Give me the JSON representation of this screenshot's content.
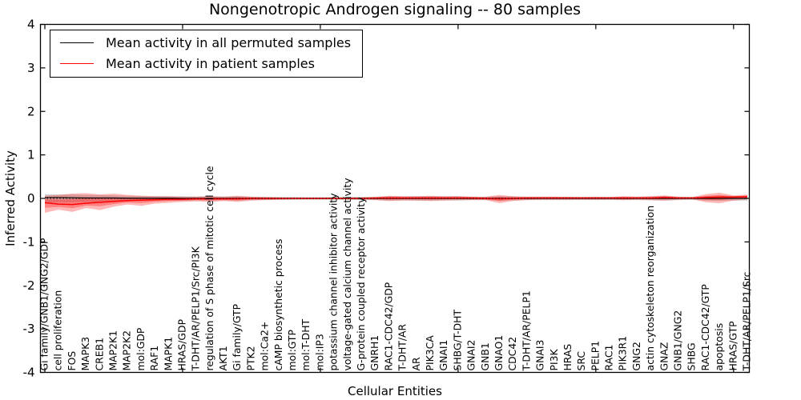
{
  "figure": {
    "title": "Nongenotropic Androgen signaling -- 80 samples",
    "legend": [
      {
        "label": "Mean activity in all permuted samples",
        "color": "#000000"
      },
      {
        "label": "Mean activity in patient samples",
        "color": "#ff0000"
      }
    ]
  },
  "chart_data": {
    "type": "line",
    "title": "Nongenotropic Androgen signaling -- 80 samples",
    "xlabel": "Cellular Entities",
    "ylabel": "Inferred Activity",
    "ylim": [
      -4,
      4
    ],
    "yticks": [
      4,
      3,
      2,
      1,
      0,
      -1,
      -2,
      -3,
      -4
    ],
    "x_major_tick_step": 10,
    "grid": false,
    "legend_position": "upper left",
    "zero_line": {
      "style": "dotted",
      "color": "#000000",
      "y": 0
    },
    "categories": [
      "Gi family/GNB1/GNG2/GDP",
      "cell proliferation",
      "FOS",
      "MAPK3",
      "CREB1",
      "MAP2K1",
      "MAP2K2",
      "mol:GDP",
      "RAF1",
      "MAPK1",
      "HRAS/GDP",
      "T-DHT/AR/PELP1/Src/PI3K",
      "regulation of S phase of mitotic cell cycle",
      "AKT1",
      "Gi family/GTP",
      "PTK2",
      "mol:Ca2+",
      "cAMP biosynthetic process",
      "mol:GTP",
      "mol:T-DHT",
      "mol:IP3",
      "potassium channel inhibitor activity",
      "voltage-gated calcium channel activity",
      "G-protein coupled receptor activity",
      "GNRH1",
      "RAC1-CDC42/GDP",
      "T-DHT/AR",
      "AR",
      "PIK3CA",
      "GNAI1",
      "SHBG/T-DHT",
      "GNAI2",
      "GNB1",
      "GNAO1",
      "CDC42",
      "T-DHT/AR/PELP1",
      "GNAI3",
      "PI3K",
      "HRAS",
      "SRC",
      "PELP1",
      "RAC1",
      "PIK3R1",
      "GNG2",
      "actin cytoskeleton reorganization",
      "GNAZ",
      "GNB1/GNG2",
      "SHBG",
      "RAC1-CDC42/GTP",
      "apoptosis",
      "HRAS/GTP",
      "T-DHT/AR/PELP1/Src"
    ],
    "series": [
      {
        "name": "Mean activity in all permuted samples",
        "color": "#000000",
        "values": [
          0.02,
          0.02,
          0.015,
          0.01,
          0.01,
          0.01,
          0.005,
          0.005,
          0.005,
          0.005,
          0,
          0,
          0,
          0,
          0,
          0,
          0,
          0,
          0,
          0,
          0,
          0,
          0,
          0,
          0,
          0,
          0,
          0,
          0,
          0,
          0,
          0,
          0,
          0,
          0,
          0,
          0,
          0,
          0,
          0,
          0,
          0,
          0,
          0,
          0,
          0,
          0,
          0,
          0,
          0,
          0,
          0
        ]
      },
      {
        "name": "Mean activity in patient samples",
        "color": "#ff0000",
        "values": [
          -0.1,
          -0.13,
          -0.14,
          -0.11,
          -0.09,
          -0.07,
          -0.05,
          -0.04,
          -0.03,
          -0.02,
          -0.02,
          -0.01,
          -0.01,
          -0.01,
          -0.01,
          0,
          0,
          0,
          0,
          0,
          0,
          0,
          0,
          0,
          0.01,
          0.01,
          0.01,
          0.01,
          0.01,
          0.01,
          0.01,
          0.01,
          0,
          -0.01,
          0,
          0.01,
          0.01,
          0.01,
          0.01,
          0.01,
          0.01,
          0.01,
          0.01,
          0.01,
          0.01,
          0.02,
          0.01,
          0.01,
          0.02,
          0.03,
          0.03,
          0.04
        ]
      }
    ],
    "bands": [
      {
        "name": "permuted-samples-range",
        "color": "#000000",
        "opacity": 0.18,
        "upper": [
          0.1,
          0.09,
          0.09,
          0.08,
          0.08,
          0.07,
          0.06,
          0.06,
          0.055,
          0.05,
          0.05,
          0.045,
          0.05,
          0.045,
          0.05,
          0.04,
          0.04,
          0.035,
          0.035,
          0.03,
          0.03,
          0.03,
          0.035,
          0.04,
          0.04,
          0.05,
          0.045,
          0.05,
          0.05,
          0.045,
          0.05,
          0.04,
          0.04,
          0.05,
          0.045,
          0.04,
          0.04,
          0.04,
          0.04,
          0.035,
          0.04,
          0.035,
          0.04,
          0.04,
          0.045,
          0.05,
          0.04,
          0.035,
          0.05,
          0.055,
          0.05,
          0.05
        ],
        "lower": [
          -0.1,
          -0.09,
          -0.09,
          -0.08,
          -0.08,
          -0.07,
          -0.06,
          -0.06,
          -0.055,
          -0.05,
          -0.05,
          -0.045,
          -0.05,
          -0.045,
          -0.05,
          -0.04,
          -0.04,
          -0.035,
          -0.035,
          -0.03,
          -0.03,
          -0.03,
          -0.035,
          -0.04,
          -0.04,
          -0.05,
          -0.045,
          -0.05,
          -0.05,
          -0.045,
          -0.05,
          -0.04,
          -0.04,
          -0.05,
          -0.045,
          -0.04,
          -0.04,
          -0.04,
          -0.04,
          -0.035,
          -0.04,
          -0.035,
          -0.04,
          -0.04,
          -0.045,
          -0.05,
          -0.04,
          -0.035,
          -0.05,
          -0.055,
          -0.05,
          -0.05
        ]
      },
      {
        "name": "patient-samples-outer-range",
        "color": "#ff0000",
        "opacity": 0.28,
        "upper": [
          0.06,
          0.08,
          0.11,
          0.12,
          0.09,
          0.11,
          0.08,
          0.06,
          0.05,
          0.05,
          0.04,
          0.04,
          0.05,
          0.04,
          0.06,
          0.04,
          0.03,
          0.02,
          0.015,
          0.015,
          0.015,
          0.015,
          0.015,
          0.02,
          0.03,
          0.06,
          0.05,
          0.05,
          0.06,
          0.05,
          0.05,
          0.04,
          0.04,
          0.08,
          0.05,
          0.04,
          0.04,
          0.04,
          0.035,
          0.03,
          0.035,
          0.03,
          0.05,
          0.04,
          0.05,
          0.07,
          0.04,
          0.03,
          0.1,
          0.13,
          0.07,
          0.09
        ],
        "lower": [
          -0.33,
          -0.26,
          -0.31,
          -0.22,
          -0.27,
          -0.19,
          -0.14,
          -0.17,
          -0.12,
          -0.1,
          -0.08,
          -0.07,
          -0.08,
          -0.06,
          -0.08,
          -0.05,
          -0.04,
          -0.03,
          -0.02,
          -0.02,
          -0.02,
          -0.02,
          -0.02,
          -0.025,
          -0.04,
          -0.06,
          -0.05,
          -0.05,
          -0.06,
          -0.05,
          -0.04,
          -0.04,
          -0.04,
          -0.11,
          -0.06,
          -0.04,
          -0.03,
          -0.03,
          -0.03,
          -0.03,
          -0.03,
          -0.03,
          -0.04,
          -0.03,
          -0.04,
          -0.05,
          -0.03,
          -0.02,
          -0.09,
          -0.11,
          -0.05,
          -0.02
        ]
      },
      {
        "name": "patient-samples-inner-range",
        "color": "#ff0000",
        "opacity": 0.3,
        "upper": [
          -0.02,
          -0.025,
          -0.015,
          0.005,
          0,
          0.02,
          0.015,
          0.01,
          0.01,
          0.015,
          0.01,
          0.015,
          0.02,
          0.015,
          0.025,
          0.02,
          0.015,
          0.01,
          0.008,
          0.008,
          0.008,
          0.008,
          0.008,
          0.01,
          0.02,
          0.035,
          0.03,
          0.03,
          0.035,
          0.03,
          0.03,
          0.025,
          0.02,
          0.035,
          0.025,
          0.025,
          0.025,
          0.025,
          0.022,
          0.02,
          0.022,
          0.02,
          0.03,
          0.025,
          0.03,
          0.045,
          0.025,
          0.02,
          0.06,
          0.08,
          0.05,
          0.065
        ],
        "lower": [
          -0.215,
          -0.195,
          -0.225,
          -0.165,
          -0.18,
          -0.13,
          -0.095,
          -0.105,
          -0.075,
          -0.06,
          -0.05,
          -0.04,
          -0.045,
          -0.035,
          -0.045,
          -0.025,
          -0.02,
          -0.015,
          -0.01,
          -0.01,
          -0.01,
          -0.01,
          -0.01,
          -0.013,
          -0.015,
          -0.025,
          -0.02,
          -0.02,
          -0.025,
          -0.02,
          -0.015,
          -0.015,
          -0.02,
          -0.06,
          -0.03,
          -0.015,
          -0.01,
          -0.01,
          -0.01,
          -0.01,
          -0.01,
          -0.01,
          -0.015,
          -0.01,
          -0.015,
          -0.015,
          -0.01,
          -0.005,
          -0.035,
          -0.04,
          -0.01,
          0.01
        ]
      }
    ]
  }
}
